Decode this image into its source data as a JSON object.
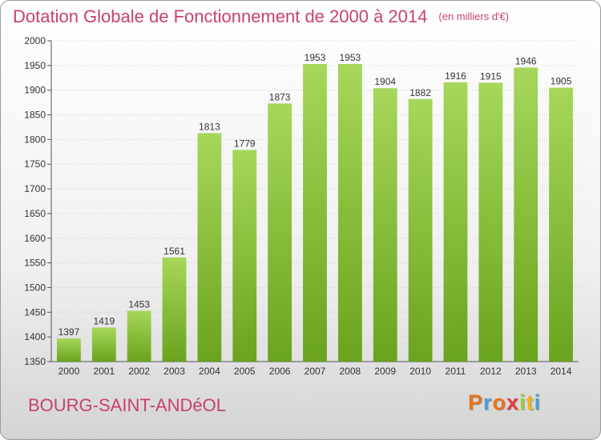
{
  "title": "Dotation Globale de Fonctionnement de 2000 à 2014",
  "unit": "(en milliers d'€)",
  "commune": "BOURG-SAINT-ANDéOL",
  "logo": {
    "letters": [
      "P",
      "r",
      "o",
      "x",
      "i",
      "t",
      "i"
    ],
    "colors": [
      "#e8721c",
      "#4a9fd8",
      "#e8721c",
      "#e83a3a",
      "#9ccb3c",
      "#f2b21b",
      "#4a9fd8"
    ]
  },
  "colors": {
    "bar_light": "#a6d75a",
    "bar_dark": "#6aa31d",
    "title": "#c8416a"
  },
  "chart_data": {
    "type": "bar",
    "categories": [
      "2000",
      "2001",
      "2002",
      "2003",
      "2004",
      "2005",
      "2006",
      "2007",
      "2008",
      "2009",
      "2010",
      "2011",
      "2012",
      "2013",
      "2014"
    ],
    "values": [
      1397,
      1419,
      1453,
      1561,
      1813,
      1779,
      1873,
      1953,
      1953,
      1904,
      1882,
      1916,
      1915,
      1946,
      1905
    ],
    "ylim": [
      1350,
      2000
    ],
    "yticks": [
      1350,
      1400,
      1450,
      1500,
      1550,
      1600,
      1650,
      1700,
      1750,
      1800,
      1850,
      1900,
      1950,
      2000
    ],
    "grid": true
  }
}
